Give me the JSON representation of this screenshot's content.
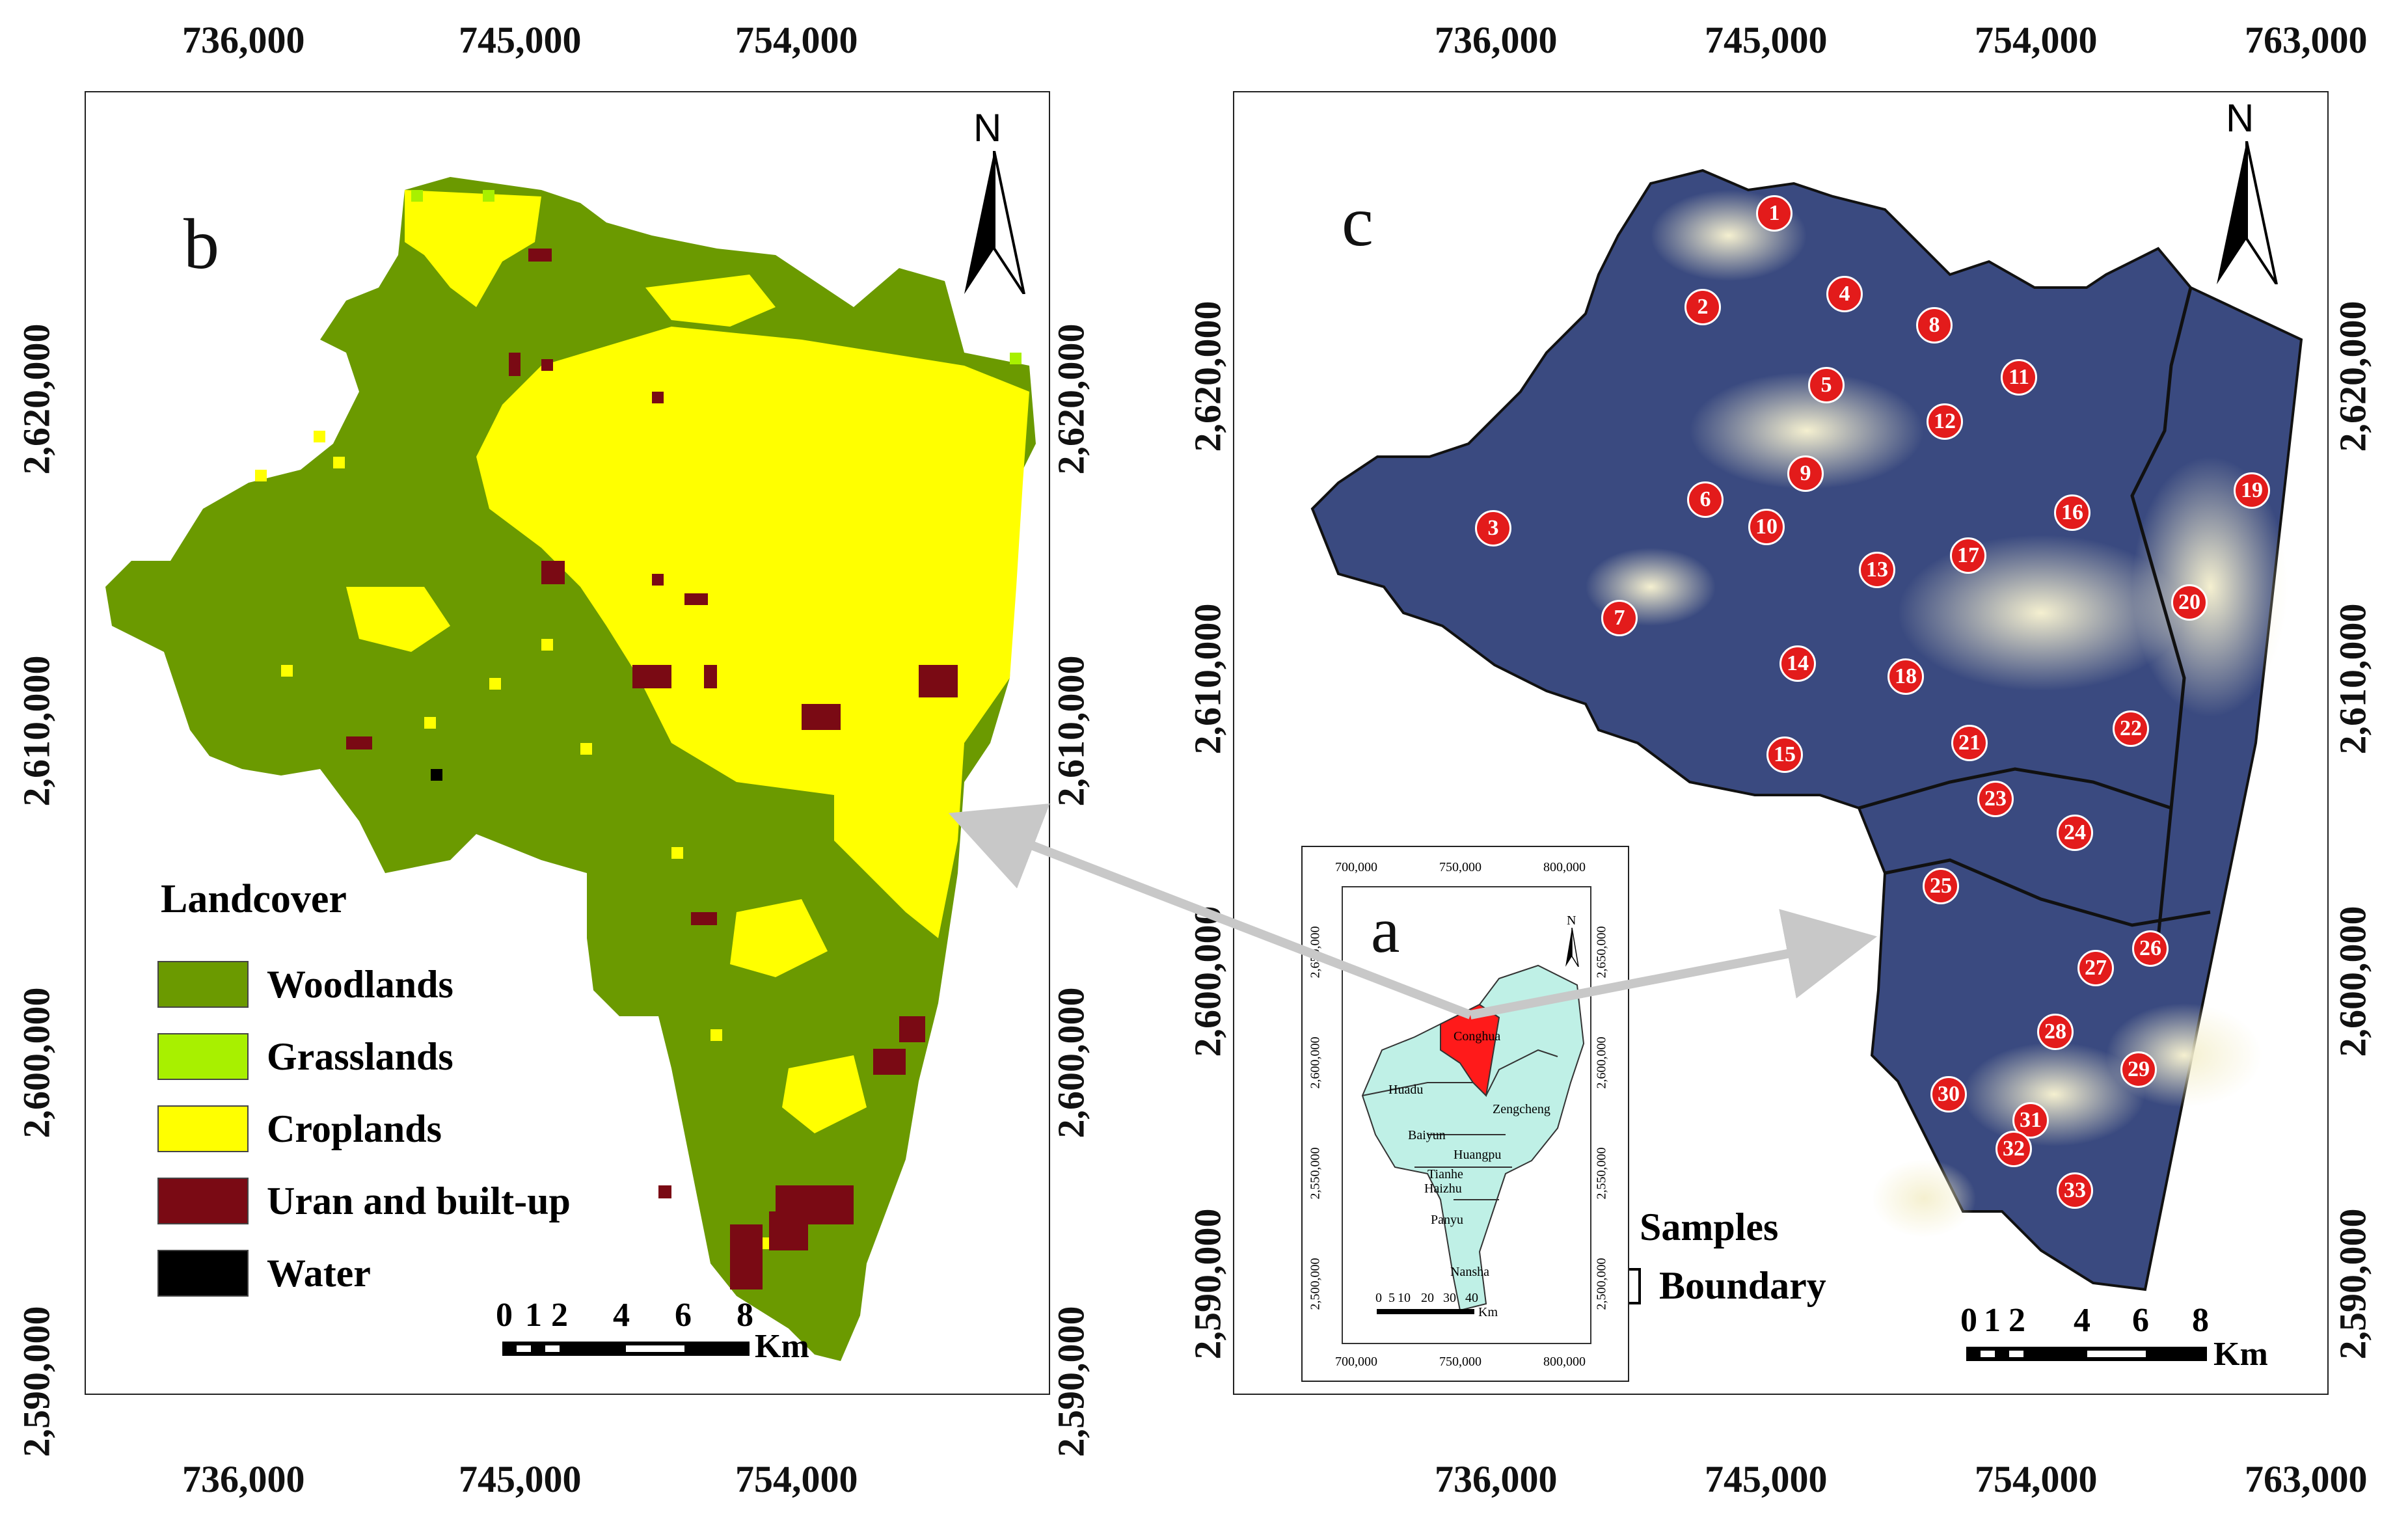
{
  "panel_b": {
    "label": "b",
    "north": "N",
    "x_ticks": [
      "736,000",
      "745,000",
      "754,000"
    ],
    "y_ticks": [
      "2,620,000",
      "2,610,000",
      "2,600,000",
      "2,590,000"
    ],
    "legend": {
      "title": "Landcover",
      "items": [
        {
          "label": "Woodlands",
          "color": "#6b9a00"
        },
        {
          "label": "Grasslands",
          "color": "#a8f000"
        },
        {
          "label": "Croplands",
          "color": "#ffff00"
        },
        {
          "label": "Uran and built-up",
          "color": "#7a0a14"
        },
        {
          "label": "Water",
          "color": "#000000"
        }
      ]
    },
    "scalebar": {
      "ticks": [
        "0",
        "1",
        "2",
        "4",
        "6",
        "8"
      ],
      "unit": "Km"
    }
  },
  "panel_c": {
    "label": "c",
    "north": "N",
    "x_ticks": [
      "736,000",
      "745,000",
      "754,000",
      "763,000"
    ],
    "y_ticks": [
      "2,620,000",
      "2,610,000",
      "2,600,000",
      "2,590,000"
    ],
    "samples": [
      "1",
      "2",
      "3",
      "4",
      "5",
      "6",
      "7",
      "8",
      "9",
      "10",
      "11",
      "12",
      "13",
      "14",
      "15",
      "16",
      "17",
      "18",
      "19",
      "20",
      "21",
      "22",
      "23",
      "24",
      "25",
      "26",
      "27",
      "28",
      "29",
      "30",
      "31",
      "32",
      "33"
    ],
    "legend": [
      {
        "label": "Samples",
        "color": "#e31b1b"
      },
      {
        "label": "Boundary",
        "color": "#ffffff"
      }
    ],
    "scalebar": {
      "ticks": [
        "0",
        "1",
        "2",
        "4",
        "6",
        "8"
      ],
      "unit": "Km"
    }
  },
  "panel_a": {
    "label": "a",
    "north": "N",
    "x_ticks": [
      "700,000",
      "750,000",
      "800,000"
    ],
    "y_ticks": [
      "2,650,000",
      "2,600,000",
      "2,550,000",
      "2,500,000"
    ],
    "districts": [
      "Conghua",
      "Huadu",
      "Zengcheng",
      "Baiyun",
      "Huangpu",
      "Tianhe",
      "Haizhu",
      "Panyu",
      "Nansha"
    ],
    "scalebar": {
      "ticks": [
        "0",
        "5",
        "10",
        "20",
        "30",
        "40"
      ],
      "unit": "Km"
    },
    "colors": {
      "highlight": "#ff1a1a",
      "districts": "#bff0e6"
    }
  },
  "arrow_color": "#c8c8c8"
}
